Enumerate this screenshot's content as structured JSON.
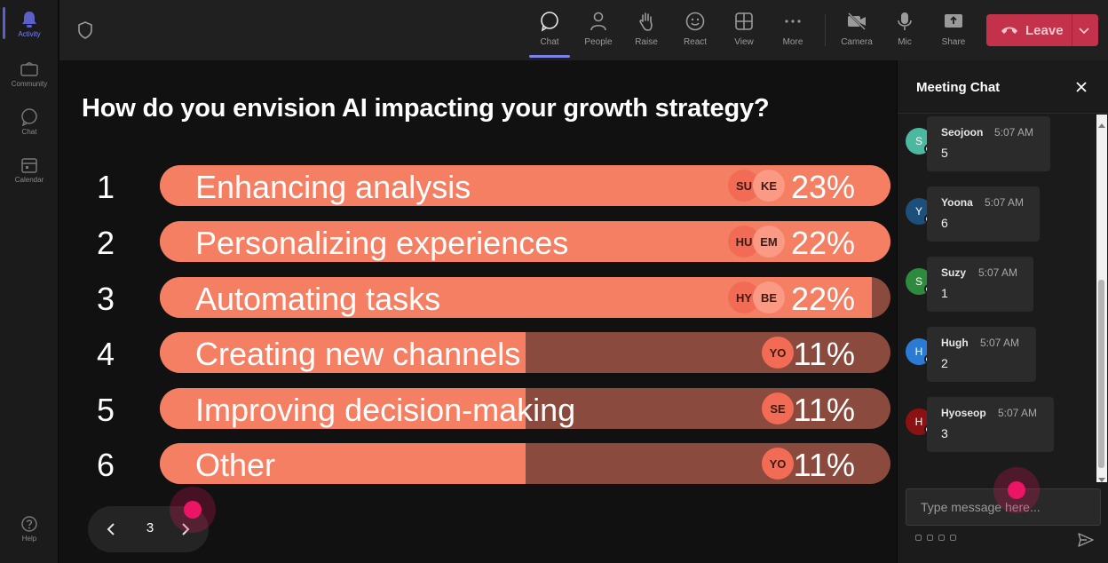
{
  "rail": {
    "items": [
      {
        "label": "Activity",
        "icon": "bell-icon"
      },
      {
        "label": "Community",
        "icon": "community-icon"
      },
      {
        "label": "Chat",
        "icon": "chat-icon"
      },
      {
        "label": "Calendar",
        "icon": "calendar-icon"
      }
    ],
    "help": {
      "label": "Help",
      "icon": "help-icon"
    }
  },
  "toolbar": {
    "buttons": [
      {
        "label": "Chat",
        "icon": "chat-icon"
      },
      {
        "label": "People",
        "icon": "people-icon"
      },
      {
        "label": "Raise",
        "icon": "raise-hand-icon"
      },
      {
        "label": "React",
        "icon": "smiley-icon"
      },
      {
        "label": "View",
        "icon": "grid-icon"
      },
      {
        "label": "More",
        "icon": "more-icon"
      },
      {
        "label": "Camera",
        "icon": "camera-off-icon"
      },
      {
        "label": "Mic",
        "icon": "mic-icon"
      },
      {
        "label": "Share",
        "icon": "share-icon"
      }
    ],
    "leave_label": "Leave"
  },
  "poll": {
    "question": "How do you envision AI impacting your growth strategy?",
    "options": [
      {
        "num": "1",
        "label": "Enhancing analysis",
        "percent": "23%",
        "fill": 1.0,
        "avatars": [
          "SU",
          "KE"
        ]
      },
      {
        "num": "2",
        "label": "Personalizing experiences",
        "percent": "22%",
        "fill": 1.0,
        "avatars": [
          "HU",
          "EM"
        ]
      },
      {
        "num": "3",
        "label": "Automating tasks",
        "percent": "22%",
        "fill": 0.974,
        "avatars": [
          "HY",
          "BE"
        ]
      },
      {
        "num": "4",
        "label": "Creating new channels",
        "percent": "11%",
        "fill": 0.5,
        "avatars": [
          "YO"
        ]
      },
      {
        "num": "5",
        "label": "Improving decision-making",
        "percent": "11%",
        "fill": 0.5,
        "avatars": [
          "SE"
        ]
      },
      {
        "num": "6",
        "label": "Other",
        "percent": "11%",
        "fill": 0.5,
        "avatars": [
          "YO"
        ]
      }
    ],
    "page": "3"
  },
  "chat": {
    "title": "Meeting Chat",
    "messages": [
      {
        "initial": "S",
        "name": "Seojoon",
        "time": "5:07 AM",
        "text": "5",
        "color": "#4db8a0"
      },
      {
        "initial": "Y",
        "name": "Yoona",
        "time": "5:07 AM",
        "text": "6",
        "color": "#1c4f7a"
      },
      {
        "initial": "S",
        "name": "Suzy",
        "time": "5:07 AM",
        "text": "1",
        "color": "#2e8b3e"
      },
      {
        "initial": "H",
        "name": "Hugh",
        "time": "5:07 AM",
        "text": "2",
        "color": "#2b7bd4"
      },
      {
        "initial": "H",
        "name": "Hyoseop",
        "time": "5:07 AM",
        "text": "3",
        "color": "#8b1212"
      }
    ],
    "input_placeholder": "Type message here..."
  },
  "colors": {
    "bar_fill": "#f47f63",
    "bar_track": "#8a4a3d",
    "leave": "#c4314b",
    "accent": "#7b83eb"
  }
}
